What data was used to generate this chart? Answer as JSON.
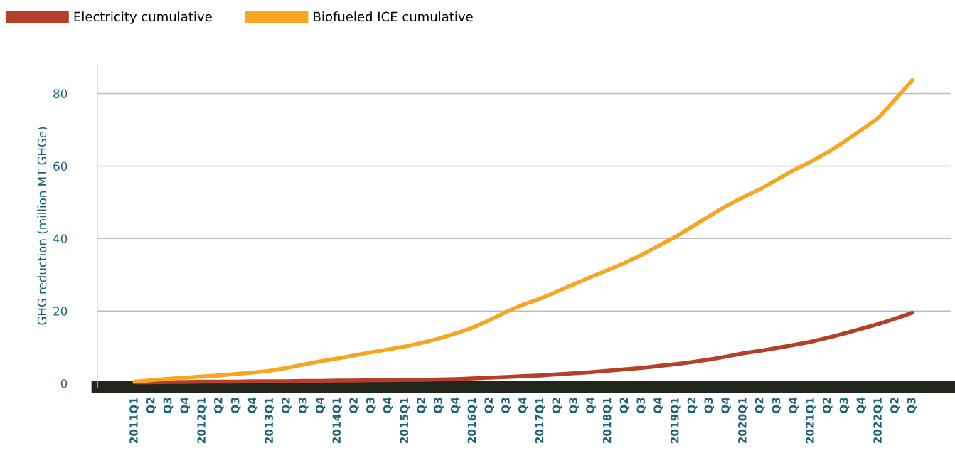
{
  "chart_data": {
    "type": "line",
    "ylabel": "GHG reduction (million MT GHGe)",
    "categories": [
      "2011Q1",
      "Q2",
      "Q3",
      "Q4",
      "2012Q1",
      "Q2",
      "Q3",
      "Q4",
      "2013Q1",
      "Q2",
      "Q3",
      "Q4",
      "2014Q1",
      "Q2",
      "Q3",
      "Q4",
      "2015Q1",
      "Q2",
      "Q3",
      "Q4",
      "2016Q1",
      "Q2",
      "Q3",
      "Q4",
      "2017Q1",
      "Q2",
      "Q3",
      "Q4",
      "2018Q1",
      "Q2",
      "Q3",
      "Q4",
      "2019Q1",
      "Q2",
      "Q3",
      "Q4",
      "2020Q1",
      "Q2",
      "Q3",
      "Q4",
      "2021Q1",
      "Q2",
      "Q3",
      "Q4",
      "2022Q1",
      "Q2",
      "Q3"
    ],
    "series": [
      {
        "name": "Electricity cumulative",
        "color": "#b5402a",
        "values": [
          0.3,
          0.3,
          0.4,
          0.4,
          0.5,
          0.5,
          0.5,
          0.6,
          0.6,
          0.6,
          0.7,
          0.7,
          0.8,
          0.8,
          0.9,
          0.9,
          1.0,
          1.0,
          1.1,
          1.2,
          1.4,
          1.6,
          1.8,
          2.0,
          2.2,
          2.5,
          2.8,
          3.1,
          3.5,
          3.9,
          4.3,
          4.8,
          5.3,
          5.9,
          6.6,
          7.4,
          8.3,
          9.0,
          9.8,
          10.6,
          11.5,
          12.6,
          13.8,
          15.1,
          16.4,
          17.9,
          19.5
        ]
      },
      {
        "name": "Biofueled ICE cumulative",
        "color": "#f5a623",
        "values": [
          0.5,
          0.9,
          1.3,
          1.6,
          1.9,
          2.2,
          2.6,
          3.0,
          3.5,
          4.3,
          5.2,
          6.1,
          6.9,
          7.7,
          8.6,
          9.4,
          10.2,
          11.2,
          12.4,
          13.8,
          15.4,
          17.5,
          19.8,
          21.8,
          23.4,
          25.4,
          27.4,
          29.4,
          31.3,
          33.3,
          35.5,
          38.0,
          40.5,
          43.3,
          46.2,
          49.0,
          51.4,
          53.6,
          56.3,
          58.9,
          61.2,
          63.8,
          66.8,
          70.0,
          73.3,
          78.4,
          83.7
        ]
      }
    ],
    "ylim": [
      -1,
      88
    ],
    "yticks": [
      0,
      20,
      40,
      60,
      80
    ],
    "grid": "y",
    "legend": "top left",
    "marker": "none",
    "line_style": "solid"
  }
}
